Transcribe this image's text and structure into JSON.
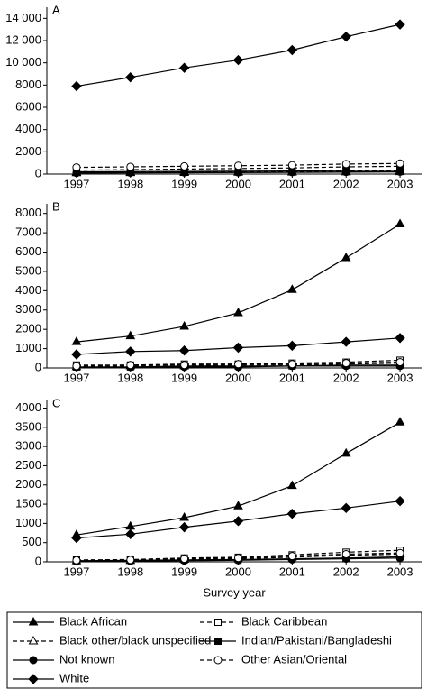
{
  "chart_data": [
    {
      "type": "line",
      "title": "A",
      "x": [
        1997,
        1998,
        1999,
        2000,
        2001,
        2002,
        2003
      ],
      "xlim": [
        1996.45,
        2003.4
      ],
      "xticks": [
        1997,
        1998,
        1999,
        2000,
        2001,
        2002,
        2003
      ],
      "ylim": [
        0,
        15000
      ],
      "yticks": [
        0,
        2000,
        4000,
        6000,
        8000,
        {
          "value": 10000,
          "label": "10 000"
        },
        {
          "value": 12000,
          "label": "12 000"
        },
        {
          "value": 14000,
          "label": "14 000"
        }
      ],
      "series": [
        {
          "name": "Black African",
          "color": "#000000",
          "marker": "triangle",
          "filled": true,
          "dashed": false,
          "values": [
            100,
            110,
            120,
            140,
            150,
            170,
            190
          ]
        },
        {
          "name": "Black Caribbean",
          "color": "#000000",
          "marker": "square",
          "filled": false,
          "dashed": true,
          "values": [
            350,
            400,
            450,
            500,
            550,
            650,
            700
          ]
        },
        {
          "name": "Black other/black unspecified",
          "color": "#000000",
          "marker": "triangle",
          "filled": false,
          "dashed": true,
          "values": [
            150,
            170,
            190,
            210,
            230,
            260,
            300
          ]
        },
        {
          "name": "Indian/Pakistani/Bangladeshi",
          "color": "#000000",
          "marker": "square",
          "filled": true,
          "dashed": false,
          "values": [
            200,
            220,
            240,
            260,
            280,
            310,
            340
          ]
        },
        {
          "name": "Not known",
          "color": "#000000",
          "marker": "circle",
          "filled": true,
          "dashed": false,
          "values": [
            100,
            120,
            140,
            150,
            170,
            190,
            210
          ]
        },
        {
          "name": "Other Asian/Oriental",
          "color": "#000000",
          "marker": "circle",
          "filled": false,
          "dashed": true,
          "values": [
            600,
            650,
            700,
            750,
            800,
            900,
            950
          ]
        },
        {
          "name": "White",
          "color": "#000000",
          "marker": "diamond",
          "filled": true,
          "dashed": false,
          "values": [
            7900,
            8700,
            9550,
            10250,
            11150,
            12350,
            13450
          ]
        }
      ]
    },
    {
      "type": "line",
      "title": "B",
      "x": [
        1997,
        1998,
        1999,
        2000,
        2001,
        2002,
        2003
      ],
      "xlim": [
        1996.45,
        2003.4
      ],
      "xticks": [
        1997,
        1998,
        1999,
        2000,
        2001,
        2002,
        2003
      ],
      "ylim": [
        0,
        8500
      ],
      "yticks": [
        0,
        1000,
        2000,
        3000,
        4000,
        5000,
        6000,
        7000,
        8000
      ],
      "series": [
        {
          "name": "Black African",
          "color": "#000000",
          "marker": "triangle",
          "filled": true,
          "dashed": false,
          "values": [
            1350,
            1650,
            2150,
            2850,
            4050,
            5700,
            7450
          ]
        },
        {
          "name": "Black Caribbean",
          "color": "#000000",
          "marker": "square",
          "filled": false,
          "dashed": true,
          "values": [
            150,
            150,
            200,
            200,
            250,
            300,
            400
          ]
        },
        {
          "name": "Black other/black unspecified",
          "color": "#000000",
          "marker": "triangle",
          "filled": false,
          "dashed": true,
          "values": [
            50,
            100,
            100,
            150,
            150,
            200,
            250
          ]
        },
        {
          "name": "Indian/Pakistani/Bangladeshi",
          "color": "#000000",
          "marker": "square",
          "filled": true,
          "dashed": false,
          "values": [
            50,
            50,
            100,
            100,
            100,
            150,
            150
          ]
        },
        {
          "name": "Not known",
          "color": "#000000",
          "marker": "circle",
          "filled": true,
          "dashed": false,
          "values": [
            50,
            50,
            50,
            50,
            100,
            100,
            100
          ]
        },
        {
          "name": "Other Asian/Oriental",
          "color": "#000000",
          "marker": "circle",
          "filled": false,
          "dashed": true,
          "values": [
            100,
            150,
            150,
            200,
            200,
            250,
            300
          ]
        },
        {
          "name": "White",
          "color": "#000000",
          "marker": "diamond",
          "filled": true,
          "dashed": false,
          "values": [
            700,
            850,
            900,
            1050,
            1150,
            1350,
            1550
          ]
        }
      ]
    },
    {
      "type": "line",
      "title": "C",
      "x_label": "Survey year",
      "x": [
        1997,
        1998,
        1999,
        2000,
        2001,
        2002,
        2003
      ],
      "xlim": [
        1996.45,
        2003.4
      ],
      "xticks": [
        1997,
        1998,
        1999,
        2000,
        2001,
        2002,
        2003
      ],
      "ylim": [
        0,
        4200
      ],
      "yticks": [
        0,
        500,
        1000,
        1500,
        2000,
        2500,
        3000,
        3500,
        4000
      ],
      "series": [
        {
          "name": "Black African",
          "color": "#000000",
          "marker": "triangle",
          "filled": true,
          "dashed": false,
          "values": [
            700,
            920,
            1150,
            1450,
            1980,
            2820,
            3630
          ]
        },
        {
          "name": "Black Caribbean",
          "color": "#000000",
          "marker": "square",
          "filled": false,
          "dashed": true,
          "values": [
            50,
            60,
            100,
            120,
            180,
            250,
            300
          ]
        },
        {
          "name": "Black other/black unspecified",
          "color": "#000000",
          "marker": "triangle",
          "filled": false,
          "dashed": true,
          "values": [
            20,
            30,
            60,
            80,
            120,
            170,
            200
          ]
        },
        {
          "name": "Indian/Pakistani/Bangladeshi",
          "color": "#000000",
          "marker": "square",
          "filled": true,
          "dashed": false,
          "values": [
            30,
            40,
            50,
            60,
            80,
            100,
            130
          ]
        },
        {
          "name": "Not known",
          "color": "#000000",
          "marker": "circle",
          "filled": true,
          "dashed": false,
          "values": [
            10,
            20,
            30,
            40,
            60,
            80,
            100
          ]
        },
        {
          "name": "Other Asian/Oriental",
          "color": "#000000",
          "marker": "circle",
          "filled": false,
          "dashed": true,
          "values": [
            40,
            50,
            80,
            100,
            150,
            200,
            230
          ]
        },
        {
          "name": "White",
          "color": "#000000",
          "marker": "diamond",
          "filled": true,
          "dashed": false,
          "values": [
            620,
            720,
            900,
            1060,
            1250,
            1400,
            1580
          ]
        }
      ]
    }
  ]
}
